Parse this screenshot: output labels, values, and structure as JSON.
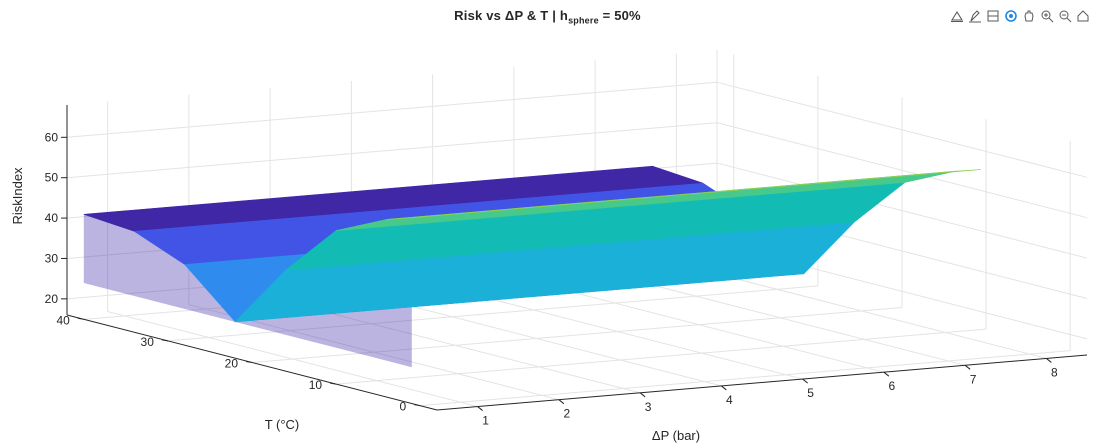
{
  "figure": {
    "title_main": "Risk  vs  ΔP  &  T   |   h",
    "title_sub": "sphere",
    "title_tail": " = 50%"
  },
  "toolbar": {
    "items": [
      "export-icon",
      "brush-icon",
      "datatip-icon",
      "rotate-icon",
      "pan-icon",
      "zoom-in-icon",
      "zoom-out-icon",
      "home-icon"
    ]
  },
  "colors": {
    "bands": [
      "#3f27a6",
      "#4154e6",
      "#2f8cee",
      "#1ab0d8",
      "#12bcb4",
      "#46c98a",
      "#8dce55"
    ],
    "grid": "#e3e3e3",
    "axis": "#262626"
  },
  "chart_data": {
    "type": "surface",
    "xlabel": "ΔP  (bar)",
    "ylabel": "T (°C)",
    "zlabel": "RiskIndex",
    "xticks": [
      1,
      2,
      3,
      4,
      5,
      6,
      7,
      8
    ],
    "yticks": [
      0,
      10,
      20,
      30,
      40
    ],
    "zticks": [
      20,
      30,
      40,
      50,
      60
    ],
    "xlim": [
      0.5,
      8.5
    ],
    "ylim": [
      -2,
      42
    ],
    "zlim": [
      16,
      68
    ],
    "grid": true,
    "x": [
      0.5,
      1.5,
      2.5,
      3.5,
      4.5,
      5.5,
      6.5,
      7.5
    ],
    "y": [
      40,
      34,
      28,
      22,
      16,
      10,
      4,
      1
    ],
    "z": [
      [
        42,
        42,
        42,
        42,
        42,
        42,
        42,
        42
      ],
      [
        41,
        41,
        41,
        41,
        41,
        41,
        41,
        41
      ],
      [
        36,
        36,
        36,
        36,
        36,
        36,
        36,
        36
      ],
      [
        25,
        25,
        25,
        25,
        25,
        25,
        25,
        25
      ],
      [
        41,
        41,
        41,
        41,
        41,
        41,
        41,
        41
      ],
      [
        54,
        54,
        54,
        54,
        54,
        54,
        54,
        54
      ],
      [
        60,
        60,
        60,
        60,
        60,
        60,
        60,
        60
      ],
      [
        62,
        62,
        62,
        62,
        62,
        62,
        62,
        62
      ]
    ]
  }
}
